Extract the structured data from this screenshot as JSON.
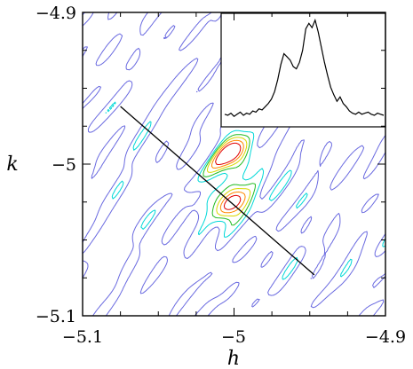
{
  "chart_data": {
    "type": "contour",
    "title": "",
    "xlabel": "h",
    "ylabel": "k",
    "xlim": [
      -5.1,
      -4.9
    ],
    "ylim": [
      -5.1,
      -4.9
    ],
    "xticks": [
      -5.1,
      -5,
      -4.9
    ],
    "yticks": [
      -5.1,
      -5,
      -4.9
    ],
    "xtick_labels": [
      "−5.1",
      "−5",
      "−4.9"
    ],
    "ytick_labels": [
      "−5.1",
      "−5",
      "−4.9"
    ],
    "grid": false,
    "line_cut": {
      "start": [
        -5.075,
        -4.962
      ],
      "end": [
        -4.947,
        -5.073
      ]
    },
    "peaks": [
      {
        "h": -5.001,
        "k": -4.9935
      },
      {
        "h": -5.002,
        "k": -5.0255
      }
    ],
    "contour_levels": [
      {
        "level": 1,
        "color": "#6a6ae0"
      },
      {
        "level": 2,
        "color": "#00d8d8"
      },
      {
        "level": 3,
        "color": "#22bb22"
      },
      {
        "level": 4,
        "color": "#d8d800"
      },
      {
        "level": 5,
        "color": "#ff8800"
      },
      {
        "level": 6,
        "color": "#e00000"
      }
    ],
    "inset": {
      "type": "line",
      "description_profile": [
        0.1,
        0.09,
        0.11,
        0.08,
        0.1,
        0.12,
        0.09,
        0.11,
        0.1,
        0.13,
        0.12,
        0.15,
        0.14,
        0.17,
        0.2,
        0.24,
        0.31,
        0.42,
        0.56,
        0.66,
        0.63,
        0.6,
        0.54,
        0.52,
        0.58,
        0.69,
        0.89,
        0.94,
        0.9,
        0.97,
        0.86,
        0.72,
        0.58,
        0.46,
        0.35,
        0.28,
        0.22,
        0.26,
        0.2,
        0.17,
        0.13,
        0.11,
        0.1,
        0.12,
        0.1,
        0.11,
        0.12,
        0.1,
        0.09,
        0.11,
        0.1,
        0.09
      ]
    }
  }
}
